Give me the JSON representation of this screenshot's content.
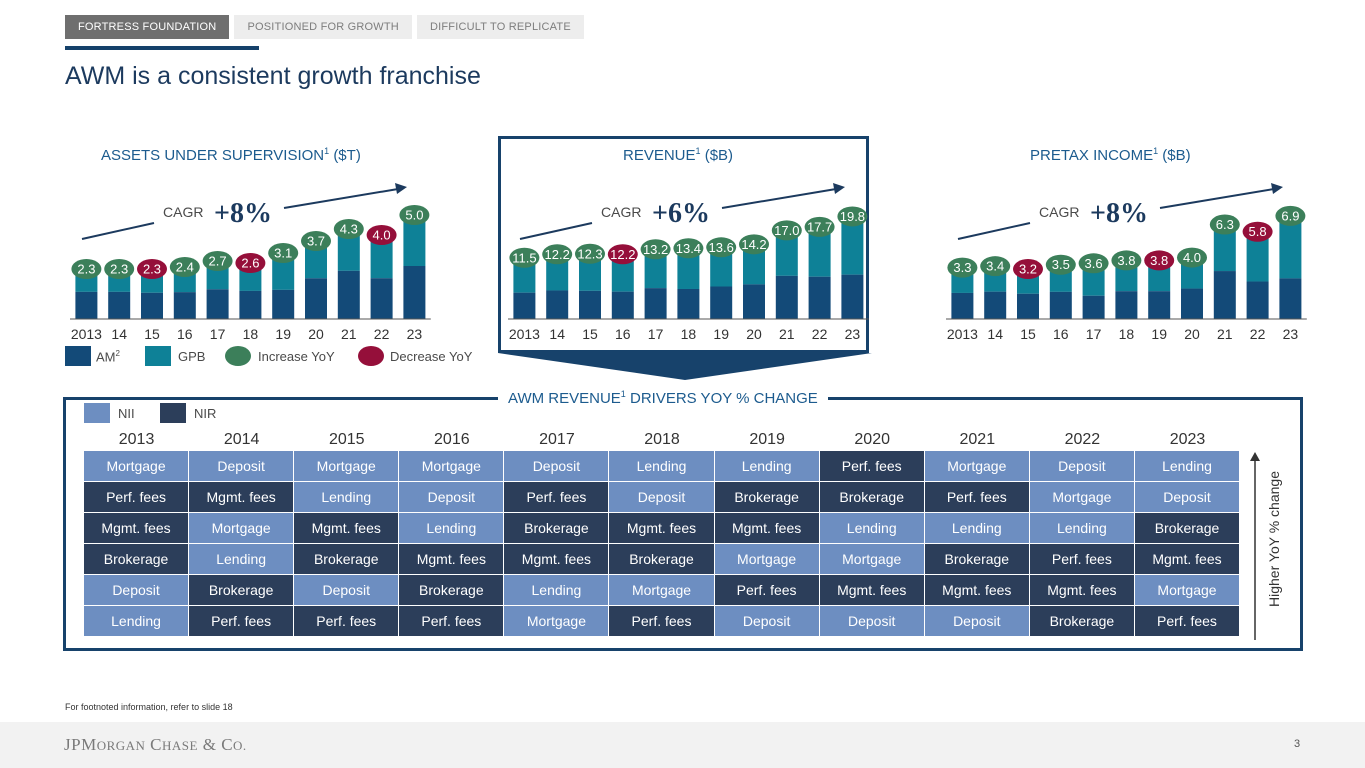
{
  "tabs": [
    "FORTRESS FOUNDATION",
    "POSITIONED FOR GROWTH",
    "DIFFICULT TO REPLICATE"
  ],
  "title": "AWM is a consistent growth franchise",
  "colors": {
    "am": "#134a78",
    "gpb": "#0e8197",
    "increase": "#3c7f5a",
    "decrease": "#950f3a",
    "nii": "#6d8ec1",
    "nir": "#2c3e5a",
    "navy": "#17426b"
  },
  "chart_data": [
    {
      "type": "bar",
      "id": "aus",
      "title": "ASSETS UNDER SUPERVISION",
      "title_sup": "1",
      "unit": "($T)",
      "categories": [
        "2013",
        "14",
        "15",
        "16",
        "17",
        "18",
        "19",
        "20",
        "21",
        "22",
        "23"
      ],
      "totals": [
        "2.3",
        "2.3",
        "2.3",
        "2.4",
        "2.7",
        "2.6",
        "3.1",
        "3.7",
        "4.3",
        "4.0",
        "5.0"
      ],
      "am_share": [
        0.59,
        0.59,
        0.57,
        0.56,
        0.55,
        0.54,
        0.47,
        0.55,
        0.56,
        0.51,
        0.53
      ],
      "yoy": [
        "up",
        "up",
        "down",
        "up",
        "up",
        "down",
        "up",
        "up",
        "up",
        "down",
        "up"
      ],
      "cagr_label": "CAGR",
      "cagr_value": "+8%",
      "stacked_series": [
        "AM",
        "GPB"
      ],
      "ylim": [
        0,
        5.6
      ]
    },
    {
      "type": "bar",
      "id": "revenue",
      "title": "REVENUE",
      "title_sup": "1",
      "unit": "($B)",
      "categories": [
        "2013",
        "14",
        "15",
        "16",
        "17",
        "18",
        "19",
        "20",
        "21",
        "22",
        "23"
      ],
      "totals": [
        "11.5",
        "12.2",
        "12.3",
        "12.2",
        "13.2",
        "13.4",
        "13.6",
        "14.2",
        "17.0",
        "17.7",
        "19.8"
      ],
      "am_share": [
        0.46,
        0.47,
        0.46,
        0.45,
        0.47,
        0.45,
        0.48,
        0.49,
        0.51,
        0.48,
        0.45
      ],
      "yoy": [
        "up",
        "up",
        "up",
        "down",
        "up",
        "up",
        "up",
        "up",
        "up",
        "up",
        "up"
      ],
      "cagr_label": "CAGR",
      "cagr_value": "+6%",
      "stacked_series": [
        "AM",
        "GPB"
      ],
      "ylim": [
        0,
        22.5
      ]
    },
    {
      "type": "bar",
      "id": "pretax",
      "title": "PRETAX INCOME",
      "title_sup": "1",
      "unit": "($B)",
      "categories": [
        "2013",
        "14",
        "15",
        "16",
        "17",
        "18",
        "19",
        "20",
        "21",
        "22",
        "23"
      ],
      "totals": [
        "3.3",
        "3.4",
        "3.2",
        "3.5",
        "3.6",
        "3.8",
        "3.8",
        "4.0",
        "6.3",
        "5.8",
        "6.9"
      ],
      "am_share": [
        0.55,
        0.56,
        0.55,
        0.54,
        0.45,
        0.51,
        0.51,
        0.53,
        0.53,
        0.45,
        0.41
      ],
      "yoy": [
        "up",
        "up",
        "down",
        "up",
        "up",
        "up",
        "down",
        "up",
        "up",
        "down",
        "up"
      ],
      "cagr_label": "CAGR",
      "cagr_value": "+8%",
      "stacked_series": [
        "AM",
        "GPB"
      ],
      "ylim": [
        0,
        7.8
      ]
    }
  ],
  "legend": {
    "am": "AM",
    "am_sup": "2",
    "gpb": "GPB",
    "increase": "Increase YoY",
    "decrease": "Decrease YoY"
  },
  "drivers": {
    "title": "AWM REVENUE",
    "title_sup": "1",
    "title_rest": "DRIVERS YOY % CHANGE",
    "legend_nii": "NII",
    "legend_nir": "NIR",
    "years": [
      "2013",
      "2014",
      "2015",
      "2016",
      "2017",
      "2018",
      "2019",
      "2020",
      "2021",
      "2022",
      "2023"
    ],
    "rows": [
      [
        "Mortgage",
        "Deposit",
        "Mortgage",
        "Mortgage",
        "Deposit",
        "Lending",
        "Lending",
        "Perf. fees",
        "Mortgage",
        "Deposit",
        "Lending"
      ],
      [
        "Perf. fees",
        "Mgmt. fees",
        "Lending",
        "Deposit",
        "Perf. fees",
        "Deposit",
        "Brokerage",
        "Brokerage",
        "Perf. fees",
        "Mortgage",
        "Deposit"
      ],
      [
        "Mgmt. fees",
        "Mortgage",
        "Mgmt. fees",
        "Lending",
        "Brokerage",
        "Mgmt. fees",
        "Mgmt. fees",
        "Lending",
        "Lending",
        "Lending",
        "Brokerage"
      ],
      [
        "Brokerage",
        "Lending",
        "Brokerage",
        "Mgmt. fees",
        "Mgmt. fees",
        "Brokerage",
        "Mortgage",
        "Mortgage",
        "Brokerage",
        "Perf. fees",
        "Mgmt. fees"
      ],
      [
        "Deposit",
        "Brokerage",
        "Deposit",
        "Brokerage",
        "Lending",
        "Mortgage",
        "Perf. fees",
        "Mgmt. fees",
        "Mgmt. fees",
        "Mgmt. fees",
        "Mortgage"
      ],
      [
        "Lending",
        "Perf. fees",
        "Perf. fees",
        "Perf. fees",
        "Mortgage",
        "Perf. fees",
        "Deposit",
        "Deposit",
        "Deposit",
        "Brokerage",
        "Perf. fees"
      ]
    ],
    "nii_items": [
      "Mortgage",
      "Deposit",
      "Lending"
    ],
    "axis_label": "Higher YoY % change"
  },
  "footnote": "For footnoted information, refer to slide 18",
  "logo": {
    "part1": "JPM",
    "part2": "ORGAN",
    "part3": " C",
    "part4": "HASE",
    "part5": " & C",
    "part6": "O."
  },
  "page_number": "3"
}
